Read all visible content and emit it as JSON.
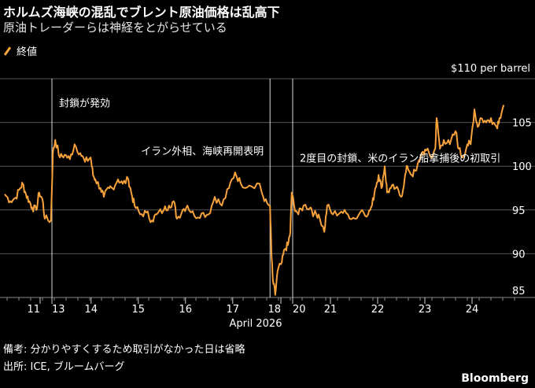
{
  "header": {
    "title": "ホルムズ海峡の混乱でブレント原油価格は乱高下",
    "subtitle": "原油トレーダーらは神経をとがらせている",
    "legend_label": "終値"
  },
  "footer": {
    "note": "備考: 分かりやすくするため取引がなかった日は省略",
    "source": "出所: ICE, ブルームバーグ",
    "brand": "Bloomberg"
  },
  "chart_data": {
    "type": "line",
    "title": "ホルムズ海峡の混乱でブレント原油価格は乱高下",
    "xlabel": "April 2026",
    "ylabel": "$110 per barrel",
    "ylim": [
      85,
      110
    ],
    "y_ticks": [
      {
        "value": 110,
        "label": "$110 per barrel"
      },
      {
        "value": 105,
        "label": "105"
      },
      {
        "value": 100,
        "label": "100"
      },
      {
        "value": 95,
        "label": "95"
      },
      {
        "value": 90,
        "label": "90"
      },
      {
        "value": 85,
        "label": "85"
      }
    ],
    "x_unit": "trading session index (continuous, weekends omitted)",
    "xlim": [
      0,
      10.75
    ],
    "x_ticks": [
      {
        "pos": 0.75,
        "label": "11"
      },
      {
        "pos": 1.0,
        "label": "13"
      },
      {
        "pos": 1.83,
        "label": "14"
      },
      {
        "pos": 2.83,
        "label": "15"
      },
      {
        "pos": 3.83,
        "label": "16"
      },
      {
        "pos": 4.83,
        "label": "17"
      },
      {
        "pos": 5.85,
        "label": "18"
      },
      {
        "pos": 6.1,
        "label": "20"
      },
      {
        "pos": 6.9,
        "label": "21"
      },
      {
        "pos": 7.9,
        "label": "22"
      },
      {
        "pos": 8.9,
        "label": "23"
      },
      {
        "pos": 9.9,
        "label": "24"
      }
    ],
    "grid": true,
    "legend_position": "top-left",
    "series": [
      {
        "name": "終値",
        "color": "#f7a23b",
        "points": [
          [
            0,
            96.8
          ],
          [
            0.12,
            96.0
          ],
          [
            0.23,
            96.4
          ],
          [
            0.33,
            97.5
          ],
          [
            0.38,
            98.0
          ],
          [
            0.45,
            96.8
          ],
          [
            0.52,
            96.0
          ],
          [
            0.58,
            95.3
          ],
          [
            0.67,
            95.0
          ],
          [
            0.73,
            97.0
          ],
          [
            0.8,
            96.2
          ],
          [
            0.85,
            94.0
          ],
          [
            0.98,
            93.8
          ],
          [
            1.02,
            101.5
          ],
          [
            1.07,
            103.0
          ],
          [
            1.17,
            101.0
          ],
          [
            1.27,
            101.3
          ],
          [
            1.38,
            100.8
          ],
          [
            1.48,
            102.5
          ],
          [
            1.6,
            101.5
          ],
          [
            1.7,
            100.5
          ],
          [
            1.82,
            101.0
          ],
          [
            1.87,
            99.0
          ],
          [
            1.92,
            98.5
          ],
          [
            2.03,
            97.5
          ],
          [
            2.1,
            96.5
          ],
          [
            2.22,
            97.5
          ],
          [
            2.28,
            97.5
          ],
          [
            2.4,
            98.5
          ],
          [
            2.5,
            98.0
          ],
          [
            2.62,
            98.5
          ],
          [
            2.68,
            97.0
          ],
          [
            2.75,
            95.5
          ],
          [
            2.87,
            94.5
          ],
          [
            3.0,
            94.7
          ],
          [
            3.12,
            93.8
          ],
          [
            3.22,
            94.5
          ],
          [
            3.37,
            95.0
          ],
          [
            3.48,
            95.5
          ],
          [
            3.58,
            96.0
          ],
          [
            3.65,
            94.0
          ],
          [
            3.77,
            95.0
          ],
          [
            3.87,
            95.5
          ],
          [
            4.02,
            94.3
          ],
          [
            4.17,
            94.6
          ],
          [
            4.32,
            94.5
          ],
          [
            4.45,
            96.5
          ],
          [
            4.6,
            95.5
          ],
          [
            4.75,
            97.5
          ],
          [
            4.88,
            99.3
          ],
          [
            5.0,
            98.0
          ],
          [
            5.18,
            97.8
          ],
          [
            5.4,
            98.0
          ],
          [
            5.5,
            96.0
          ],
          [
            5.62,
            95.5
          ],
          [
            5.65,
            90.0
          ],
          [
            5.68,
            87.0
          ],
          [
            5.73,
            85.3
          ],
          [
            5.78,
            88.0
          ],
          [
            5.87,
            89.0
          ],
          [
            5.93,
            90.5
          ],
          [
            6.0,
            91.0
          ],
          [
            6.05,
            92.5
          ],
          [
            6.08,
            97.0
          ],
          [
            6.13,
            95.5
          ],
          [
            6.22,
            94.5
          ],
          [
            6.33,
            95.5
          ],
          [
            6.48,
            95.3
          ],
          [
            6.55,
            94.5
          ],
          [
            6.65,
            94.5
          ],
          [
            6.77,
            92.5
          ],
          [
            6.83,
            95.5
          ],
          [
            6.95,
            94.5
          ],
          [
            7.13,
            94.8
          ],
          [
            7.27,
            94.5
          ],
          [
            7.42,
            94.0
          ],
          [
            7.57,
            95.0
          ],
          [
            7.7,
            94.5
          ],
          [
            7.78,
            95.5
          ],
          [
            7.85,
            97.5
          ],
          [
            7.92,
            99.0
          ],
          [
            7.98,
            97.5
          ],
          [
            8.05,
            100.0
          ],
          [
            8.1,
            97.0
          ],
          [
            8.18,
            97.5
          ],
          [
            8.28,
            97.5
          ],
          [
            8.4,
            96.5
          ],
          [
            8.47,
            98.5
          ],
          [
            8.53,
            100.0
          ],
          [
            8.62,
            99.0
          ],
          [
            8.72,
            99.5
          ],
          [
            8.83,
            101.5
          ],
          [
            8.93,
            101.8
          ],
          [
            9.05,
            101.0
          ],
          [
            9.12,
            102.0
          ],
          [
            9.15,
            105.5
          ],
          [
            9.22,
            102.0
          ],
          [
            9.3,
            103.0
          ],
          [
            9.43,
            102.5
          ],
          [
            9.55,
            104.0
          ],
          [
            9.62,
            102.0
          ],
          [
            9.7,
            101.0
          ],
          [
            9.8,
            102.5
          ],
          [
            9.87,
            102.5
          ],
          [
            9.95,
            106.5
          ],
          [
            10.02,
            104.5
          ],
          [
            10.08,
            105.5
          ],
          [
            10.2,
            105.0
          ],
          [
            10.3,
            105.5
          ],
          [
            10.42,
            104.5
          ],
          [
            10.48,
            105.5
          ],
          [
            10.57,
            107.0
          ]
        ]
      }
    ],
    "annotations": [
      {
        "pos": 1.0,
        "value": 106.8,
        "text": "封鎖が発効"
      },
      {
        "pos": 5.62,
        "value": 101.3,
        "text": "イラン外相、海峡再開表明",
        "align": "end"
      },
      {
        "pos": 6.1,
        "value": 100.5,
        "text": "2度目の封鎖、米のイラン船拿捕後の初取引"
      }
    ]
  }
}
